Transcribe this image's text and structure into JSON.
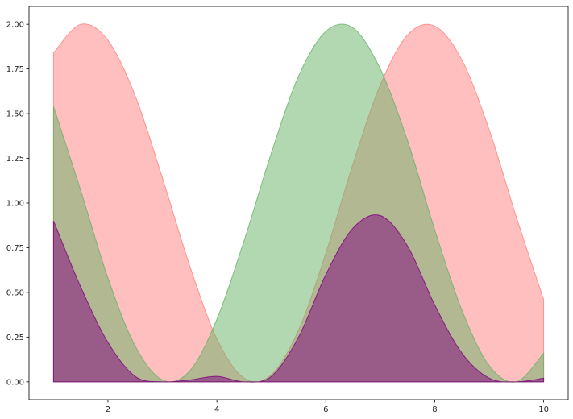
{
  "chart_data": {
    "type": "area",
    "title": "",
    "xlabel": "",
    "ylabel": "",
    "xlim": [
      0.55,
      10.45
    ],
    "ylim": [
      -0.1,
      2.1
    ],
    "x_ticks": [
      2,
      4,
      6,
      8,
      10
    ],
    "x_tick_labels": [
      "2",
      "4",
      "6",
      "8",
      "10"
    ],
    "y_ticks": [
      0.0,
      0.25,
      0.5,
      0.75,
      1.0,
      1.25,
      1.5,
      1.75,
      2.0
    ],
    "y_tick_labels": [
      "0.00",
      "0.25",
      "0.50",
      "0.75",
      "1.00",
      "1.25",
      "1.50",
      "1.75",
      "2.00"
    ],
    "grid": false,
    "legend": "none",
    "x": [
      1.0,
      1.5,
      2.0,
      2.5,
      3.0,
      3.5,
      4.0,
      4.5,
      5.0,
      5.5,
      6.0,
      6.5,
      7.0,
      7.5,
      8.0,
      8.5,
      9.0,
      9.5,
      10.0
    ],
    "series": [
      {
        "color": "#ff7f7f",
        "values": [
          1.84,
          2.0,
          1.91,
          1.6,
          1.14,
          0.65,
          0.24,
          0.02,
          0.04,
          0.29,
          0.72,
          1.22,
          1.66,
          1.94,
          1.99,
          1.8,
          1.41,
          0.92,
          0.46
        ]
      },
      {
        "color": "#66b266",
        "values": [
          1.54,
          1.07,
          0.58,
          0.2,
          0.01,
          0.06,
          0.35,
          0.79,
          1.28,
          1.71,
          1.96,
          1.98,
          1.75,
          1.35,
          0.85,
          0.4,
          0.09,
          0.0,
          0.16
        ]
      },
      {
        "color": "#800080",
        "values": [
          0.9,
          0.53,
          0.22,
          0.03,
          0.0,
          0.01,
          0.03,
          0.0,
          0.03,
          0.25,
          0.6,
          0.86,
          0.93,
          0.76,
          0.43,
          0.16,
          0.02,
          0.0,
          0.02
        ]
      }
    ]
  }
}
